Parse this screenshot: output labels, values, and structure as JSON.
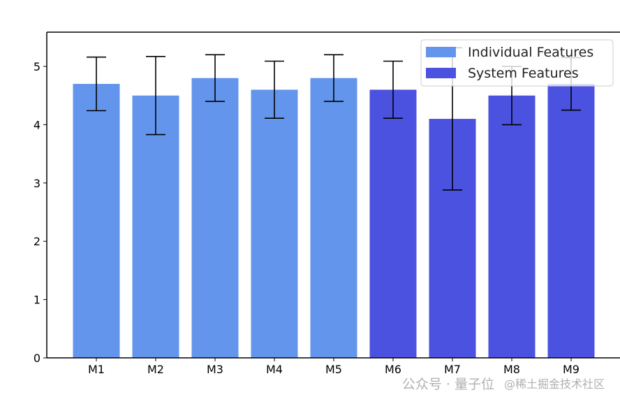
{
  "chart_data": {
    "type": "bar",
    "title": "",
    "xlabel": "",
    "ylabel": "",
    "categories": [
      "M1",
      "M2",
      "M3",
      "M4",
      "M5",
      "M6",
      "M7",
      "M8",
      "M9"
    ],
    "values": [
      4.7,
      4.5,
      4.8,
      4.6,
      4.8,
      4.6,
      4.1,
      4.5,
      4.7
    ],
    "errors": [
      0.46,
      0.67,
      0.4,
      0.49,
      0.4,
      0.49,
      1.22,
      0.5,
      0.45
    ],
    "groups": [
      "Individual Features",
      "Individual Features",
      "Individual Features",
      "Individual Features",
      "Individual Features",
      "System Features",
      "System Features",
      "System Features",
      "System Features"
    ],
    "series": [
      {
        "name": "Individual Features",
        "color": "#6495ED"
      },
      {
        "name": "System Features",
        "color": "#4B52E0"
      }
    ],
    "ylim": [
      0,
      5.55
    ],
    "yticks": [
      0,
      1,
      2,
      3,
      4,
      5
    ],
    "grid": false,
    "legend_position": "top-right"
  },
  "watermark": {
    "line1": "公众号 · 量子位",
    "line2": "@稀土掘金技术社区"
  }
}
